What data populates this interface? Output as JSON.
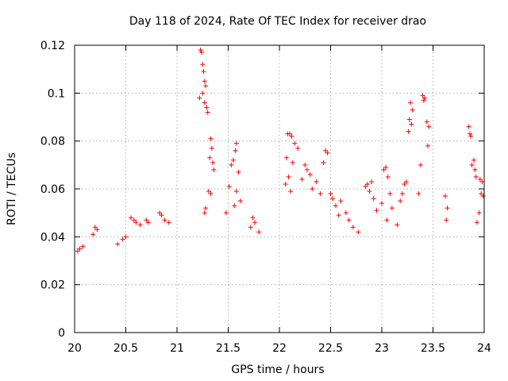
{
  "chart_data": {
    "type": "scatter",
    "title": "Day 118 of 2024, Rate Of TEC Index for receiver drao",
    "xlabel": "GPS time / hours",
    "ylabel": "ROTI / TECUs",
    "xlim": [
      20,
      24
    ],
    "ylim": [
      0,
      0.12
    ],
    "grid": true,
    "marker": "+",
    "color": "#ff0000",
    "x_ticks": [
      20,
      20.5,
      21,
      21.5,
      22,
      22.5,
      23,
      23.5,
      24
    ],
    "x_tick_labels": [
      "20",
      "20.5",
      "21",
      "21.5",
      "22",
      "22.5",
      "23",
      "23.5",
      "24"
    ],
    "y_ticks": [
      0,
      0.02,
      0.04,
      0.06,
      0.08,
      0.1,
      0.12
    ],
    "y_tick_labels": [
      "0",
      "0.02",
      "0.04",
      "0.06",
      "0.08",
      "0.1",
      "0.12"
    ],
    "series": [
      {
        "name": "ROTI",
        "points": [
          [
            21.23,
            0.118
          ],
          [
            21.24,
            0.117
          ],
          [
            21.25,
            0.112
          ],
          [
            21.26,
            0.109
          ],
          [
            21.27,
            0.105
          ],
          [
            21.28,
            0.103
          ],
          [
            21.25,
            0.1
          ],
          [
            21.22,
            0.098
          ],
          [
            21.27,
            0.096
          ],
          [
            21.29,
            0.094
          ],
          [
            21.3,
            0.092
          ],
          [
            21.33,
            0.081
          ],
          [
            21.34,
            0.077
          ],
          [
            21.32,
            0.073
          ],
          [
            21.35,
            0.071
          ],
          [
            21.36,
            0.068
          ],
          [
            21.31,
            0.059
          ],
          [
            21.33,
            0.058
          ],
          [
            21.28,
            0.052
          ],
          [
            21.27,
            0.05
          ],
          [
            21.58,
            0.079
          ],
          [
            21.57,
            0.076
          ],
          [
            21.55,
            0.072
          ],
          [
            21.53,
            0.07
          ],
          [
            21.6,
            0.067
          ],
          [
            21.51,
            0.061
          ],
          [
            21.58,
            0.059
          ],
          [
            21.62,
            0.055
          ],
          [
            21.56,
            0.053
          ],
          [
            21.48,
            0.05
          ],
          [
            21.74,
            0.048
          ],
          [
            21.76,
            0.046
          ],
          [
            21.72,
            0.044
          ],
          [
            21.8,
            0.042
          ],
          [
            22.08,
            0.083
          ],
          [
            22.1,
            0.083
          ],
          [
            22.12,
            0.082
          ],
          [
            22.15,
            0.079
          ],
          [
            22.18,
            0.077
          ],
          [
            22.07,
            0.073
          ],
          [
            22.13,
            0.071
          ],
          [
            22.09,
            0.065
          ],
          [
            22.06,
            0.062
          ],
          [
            22.11,
            0.059
          ],
          [
            22.25,
            0.07
          ],
          [
            22.27,
            0.068
          ],
          [
            22.3,
            0.066
          ],
          [
            22.22,
            0.064
          ],
          [
            22.32,
            0.06
          ],
          [
            22.36,
            0.063
          ],
          [
            22.4,
            0.058
          ],
          [
            22.45,
            0.076
          ],
          [
            22.47,
            0.075
          ],
          [
            22.43,
            0.071
          ],
          [
            22.5,
            0.058
          ],
          [
            22.52,
            0.056
          ],
          [
            22.55,
            0.053
          ],
          [
            22.6,
            0.055
          ],
          [
            22.58,
            0.049
          ],
          [
            22.65,
            0.05
          ],
          [
            22.68,
            0.047
          ],
          [
            22.72,
            0.044
          ],
          [
            22.77,
            0.042
          ],
          [
            22.84,
            0.061
          ],
          [
            22.86,
            0.062
          ],
          [
            22.88,
            0.059
          ],
          [
            22.9,
            0.063
          ],
          [
            22.92,
            0.056
          ],
          [
            22.95,
            0.051
          ],
          [
            23.0,
            0.054
          ],
          [
            23.02,
            0.068
          ],
          [
            23.04,
            0.069
          ],
          [
            23.06,
            0.065
          ],
          [
            23.08,
            0.058
          ],
          [
            23.1,
            0.052
          ],
          [
            23.05,
            0.047
          ],
          [
            23.15,
            0.045
          ],
          [
            23.28,
            0.096
          ],
          [
            23.3,
            0.093
          ],
          [
            23.27,
            0.089
          ],
          [
            23.29,
            0.087
          ],
          [
            23.26,
            0.084
          ],
          [
            23.24,
            0.063
          ],
          [
            23.22,
            0.062
          ],
          [
            23.2,
            0.058
          ],
          [
            23.18,
            0.055
          ],
          [
            23.4,
            0.099
          ],
          [
            23.42,
            0.098
          ],
          [
            23.41,
            0.097
          ],
          [
            23.44,
            0.088
          ],
          [
            23.46,
            0.086
          ],
          [
            23.45,
            0.078
          ],
          [
            23.38,
            0.07
          ],
          [
            23.36,
            0.058
          ],
          [
            23.85,
            0.086
          ],
          [
            23.86,
            0.083
          ],
          [
            23.87,
            0.082
          ],
          [
            23.9,
            0.072
          ],
          [
            23.88,
            0.07
          ],
          [
            23.91,
            0.068
          ],
          [
            23.92,
            0.065
          ],
          [
            23.96,
            0.064
          ],
          [
            23.98,
            0.063
          ],
          [
            23.97,
            0.058
          ],
          [
            23.99,
            0.057
          ],
          [
            23.95,
            0.05
          ],
          [
            23.93,
            0.046
          ],
          [
            23.62,
            0.057
          ],
          [
            23.64,
            0.052
          ],
          [
            23.63,
            0.047
          ],
          [
            20.55,
            0.048
          ],
          [
            20.58,
            0.047
          ],
          [
            20.6,
            0.046
          ],
          [
            20.64,
            0.045
          ],
          [
            20.7,
            0.047
          ],
          [
            20.72,
            0.046
          ],
          [
            20.83,
            0.05
          ],
          [
            20.85,
            0.049
          ],
          [
            20.88,
            0.047
          ],
          [
            20.92,
            0.046
          ],
          [
            20.2,
            0.044
          ],
          [
            20.22,
            0.043
          ],
          [
            20.18,
            0.041
          ],
          [
            20.5,
            0.04
          ],
          [
            20.47,
            0.039
          ],
          [
            20.42,
            0.037
          ],
          [
            20.08,
            0.036
          ],
          [
            20.05,
            0.035
          ],
          [
            20.03,
            0.034
          ]
        ]
      }
    ]
  }
}
